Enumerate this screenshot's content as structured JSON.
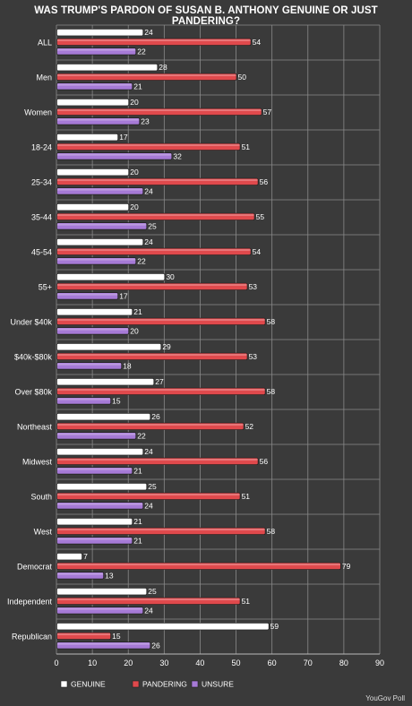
{
  "chart_data": {
    "type": "bar",
    "orientation": "horizontal",
    "title": "WAS TRUMP'S PARDON OF SUSAN B. ANTHONY GENUINE OR JUST PANDERING?",
    "source": "YouGov Poll",
    "categories": [
      "ALL",
      "Men",
      "Women",
      "18-24",
      "25-34",
      "35-44",
      "45-54",
      "55+",
      "Under $40k",
      "$40k-$80k",
      "Over $80k",
      "Northeast",
      "Midwest",
      "South",
      "West",
      "Democrat",
      "Independent",
      "Republican"
    ],
    "series": [
      {
        "name": "GENUINE",
        "color": "#ffffff",
        "values": [
          24,
          28,
          20,
          17,
          20,
          20,
          24,
          30,
          21,
          29,
          27,
          26,
          24,
          25,
          21,
          7,
          25,
          59
        ]
      },
      {
        "name": "PANDERING",
        "color": "#e0494c",
        "values": [
          54,
          50,
          57,
          51,
          56,
          55,
          54,
          53,
          58,
          53,
          58,
          52,
          56,
          51,
          58,
          79,
          51,
          15
        ]
      },
      {
        "name": "UNSURE",
        "color": "#a67ad6",
        "values": [
          22,
          21,
          23,
          32,
          24,
          25,
          22,
          17,
          20,
          18,
          15,
          22,
          21,
          24,
          21,
          13,
          24,
          26
        ]
      }
    ],
    "xlim": [
      0,
      90
    ],
    "xticks": [
      0,
      10,
      20,
      30,
      40,
      50,
      60,
      70,
      80,
      90
    ],
    "grid": true,
    "legend_position": "bottom"
  }
}
